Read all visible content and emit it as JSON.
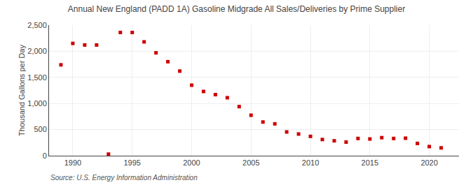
{
  "chart_data": {
    "type": "scatter",
    "title": "Annual New England (PADD 1A) Gasoline Midgrade All Sales/Deliveries by Prime Supplier",
    "ylabel": "Thousand Gallons per Day",
    "annotations": [
      "Source: U.S. Energy Information Administration"
    ],
    "x": [
      1989,
      1990,
      1991,
      1992,
      1993,
      1994,
      1995,
      1996,
      1997,
      1998,
      1999,
      2000,
      2001,
      2002,
      2003,
      2004,
      2005,
      2006,
      2007,
      2008,
      2009,
      2010,
      2011,
      2012,
      2013,
      2014,
      2015,
      2016,
      2017,
      2018,
      2019,
      2020,
      2021
    ],
    "values": [
      1740,
      2150,
      2120,
      2120,
      30,
      2360,
      2360,
      2180,
      1970,
      1800,
      1620,
      1350,
      1230,
      1170,
      1110,
      940,
      775,
      645,
      610,
      455,
      415,
      370,
      310,
      285,
      260,
      330,
      320,
      345,
      330,
      335,
      235,
      175,
      150
    ],
    "color": "#cc0000",
    "marker": "square",
    "xlim": [
      1988.0,
      2022.5
    ],
    "xticks": [
      1990,
      1995,
      2000,
      2005,
      2010,
      2015,
      2020
    ],
    "ylim": [
      0,
      2500
    ],
    "yticks": [
      0,
      500,
      {
        "value": 1000,
        "label": "1,000"
      },
      {
        "value": 1500,
        "label": "1,500"
      },
      {
        "value": 2000,
        "label": "2,000"
      },
      {
        "value": 2500,
        "label": "2,500"
      }
    ],
    "grid": true
  }
}
